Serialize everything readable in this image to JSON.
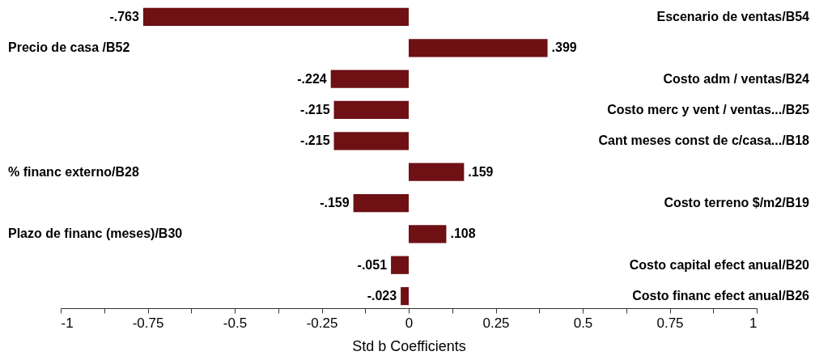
{
  "chart_data": {
    "type": "bar",
    "orientation": "horizontal",
    "xlabel": "Std b Coefficients",
    "categories": [
      "Escenario de ventas/B54",
      "Precio de casa /B52",
      "Costo adm / ventas/B24",
      "Costo merc y vent / ventas.../B25",
      "Cant meses const de c/casa.../B18",
      "% financ externo/B28",
      "Costo terreno $/m2/B19",
      "Plazo de financ (meses)/B30",
      "Costo capital efect anual/B20",
      "Costo financ efect anual/B26"
    ],
    "values": [
      -0.763,
      0.399,
      -0.224,
      -0.215,
      -0.215,
      0.159,
      -0.159,
      0.108,
      -0.051,
      -0.023
    ],
    "value_labels": [
      "-.763",
      ".399",
      "-.224",
      "-.215",
      "-.215",
      ".159",
      "-.159",
      ".108",
      "-.051",
      "-.023"
    ],
    "color": "#6e1014",
    "xlim": [
      -1,
      1
    ],
    "xticks": [
      -1,
      {
        "value": -0.875,
        "label": null
      },
      -0.75,
      {
        "value": -0.625,
        "label": null
      },
      -0.5,
      {
        "value": -0.375,
        "label": null
      },
      -0.25,
      {
        "value": -0.125,
        "label": null
      },
      0,
      {
        "value": 0.125,
        "label": null
      },
      0.25,
      {
        "value": 0.375,
        "label": null
      },
      0.5,
      {
        "value": 0.625,
        "label": null
      },
      0.75,
      {
        "value": 0.875,
        "label": null
      },
      1
    ],
    "grid": false
  }
}
